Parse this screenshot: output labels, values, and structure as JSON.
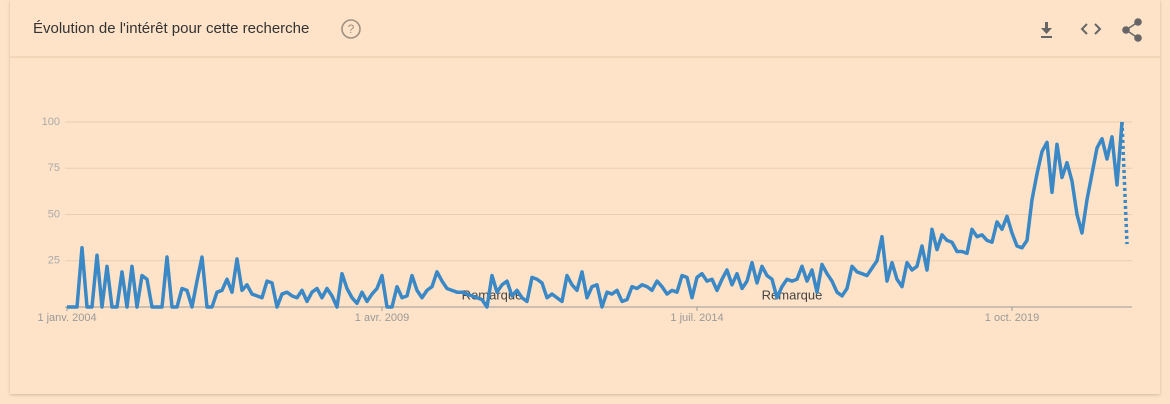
{
  "header": {
    "title": "Évolution de l'intérêt pour cette recherche"
  },
  "chart_data": {
    "type": "line",
    "color": "#3a88c6",
    "grid": true,
    "partial_last": true,
    "ylim": [
      0,
      100
    ],
    "yticks": [
      25,
      50,
      75,
      100
    ],
    "annotations": [
      {
        "text": "Remarque",
        "index": 85
      },
      {
        "text": "Remarque",
        "index": 145
      }
    ],
    "categories": [
      "1 janv. 2004",
      null,
      null,
      null,
      null,
      null,
      null,
      null,
      null,
      null,
      null,
      null,
      null,
      null,
      null,
      null,
      null,
      null,
      null,
      null,
      null,
      null,
      null,
      null,
      null,
      null,
      null,
      null,
      null,
      null,
      null,
      null,
      null,
      null,
      null,
      null,
      null,
      null,
      null,
      null,
      null,
      null,
      null,
      null,
      null,
      null,
      null,
      null,
      null,
      null,
      null,
      null,
      null,
      null,
      null,
      null,
      null,
      null,
      null,
      null,
      null,
      null,
      null,
      "1 avr. 2009",
      null,
      null,
      null,
      null,
      null,
      null,
      null,
      null,
      null,
      null,
      null,
      null,
      null,
      null,
      null,
      null,
      null,
      null,
      null,
      null,
      null,
      null,
      null,
      null,
      null,
      null,
      null,
      null,
      null,
      null,
      null,
      null,
      null,
      null,
      null,
      null,
      null,
      null,
      null,
      null,
      null,
      null,
      null,
      null,
      null,
      null,
      null,
      null,
      null,
      null,
      null,
      null,
      null,
      null,
      null,
      null,
      null,
      null,
      null,
      null,
      null,
      null,
      "1 juil. 2014",
      null,
      null,
      null,
      null,
      null,
      null,
      null,
      null,
      null,
      null,
      null,
      null,
      null,
      null,
      null,
      null,
      null,
      null,
      null,
      null,
      null,
      null,
      null,
      null,
      null,
      null,
      null,
      null,
      null,
      null,
      null,
      null,
      null,
      null,
      null,
      null,
      null,
      null,
      null,
      null,
      null,
      null,
      null,
      null,
      null,
      null,
      null,
      null,
      null,
      null,
      null,
      null,
      null,
      null,
      null,
      null,
      null,
      null,
      null,
      null,
      null,
      null,
      "1 oct. 2019",
      null,
      null,
      null,
      null,
      null,
      null,
      null,
      null,
      null,
      null,
      null,
      null,
      null,
      null,
      null,
      null,
      null,
      null,
      null,
      null,
      null,
      null,
      null
    ],
    "values": [
      0,
      0,
      0,
      32,
      0,
      0,
      28,
      0,
      22,
      0,
      0,
      19,
      0,
      22,
      0,
      17,
      15,
      0,
      0,
      0,
      27,
      0,
      0,
      10,
      9,
      0,
      14,
      27,
      0,
      0,
      8,
      9,
      15,
      8,
      26,
      9,
      12,
      7,
      6,
      5,
      14,
      13,
      0,
      7,
      8,
      6,
      5,
      9,
      3,
      8,
      10,
      5,
      10,
      6,
      0,
      18,
      10,
      5,
      2,
      8,
      3,
      7,
      10,
      17,
      0,
      0,
      11,
      5,
      6,
      17,
      9,
      5,
      9,
      11,
      19,
      14,
      10,
      9,
      8,
      8,
      7,
      6,
      5,
      4,
      0,
      17,
      8,
      12,
      14,
      6,
      9,
      5,
      3,
      16,
      15,
      13,
      5,
      7,
      5,
      3,
      17,
      12,
      9,
      19,
      5,
      11,
      12,
      0,
      8,
      7,
      9,
      3,
      4,
      11,
      10,
      12,
      11,
      9,
      14,
      11,
      7,
      9,
      8,
      17,
      16,
      5,
      16,
      18,
      14,
      15,
      9,
      15,
      20,
      12,
      18,
      10,
      14,
      24,
      13,
      22,
      17,
      15,
      5,
      11,
      15,
      14,
      15,
      22,
      14,
      20,
      8,
      23,
      18,
      14,
      8,
      6,
      10,
      22,
      19,
      18,
      17,
      21,
      25,
      38,
      14,
      24,
      15,
      11,
      24,
      20,
      22,
      33,
      20,
      42,
      31,
      39,
      36,
      35,
      30,
      30,
      29,
      42,
      38,
      39,
      36,
      35,
      46,
      42,
      49,
      40,
      33,
      32,
      36,
      58,
      72,
      84,
      89,
      62,
      88,
      70,
      78,
      68,
      50,
      40,
      58,
      72,
      86,
      91,
      80,
      92,
      66,
      100,
      34
    ]
  }
}
